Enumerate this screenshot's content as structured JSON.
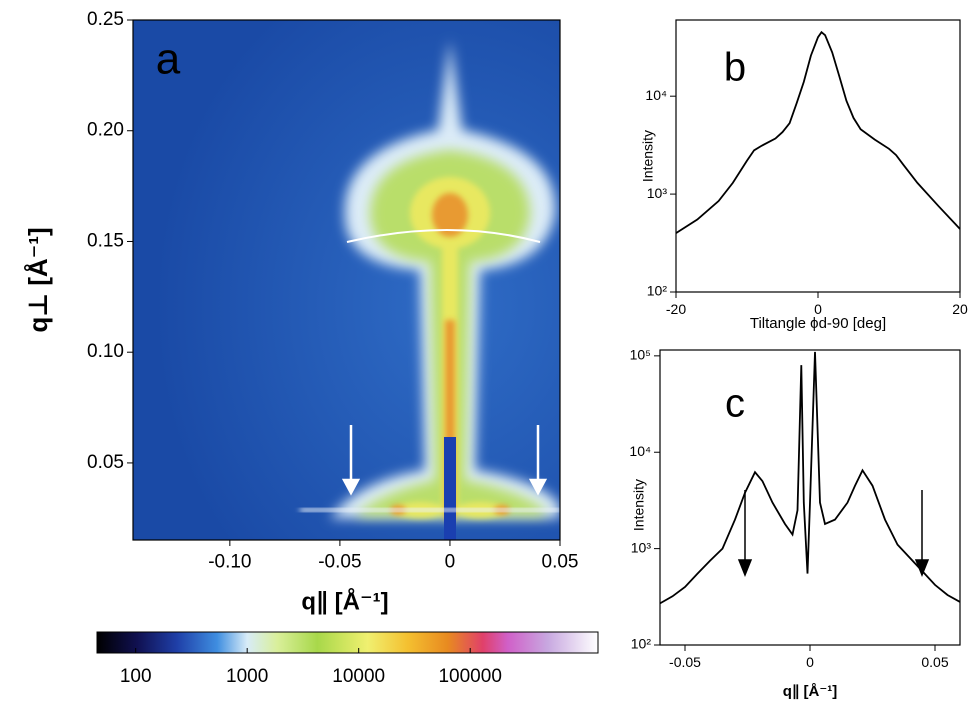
{
  "chart_data": [
    {
      "type": "heatmap",
      "annotation": "a",
      "xlabel": "q∥ [Å⁻¹]",
      "ylabel": "q⊥ [Å⁻¹]",
      "xlim": [
        -0.144,
        0.05
      ],
      "ylim": [
        0.0152,
        0.25
      ],
      "xticks": [
        {
          "value": -0.1,
          "label": "-0.10"
        },
        -0.05,
        0,
        0.05
      ],
      "yticks": [
        0.05,
        {
          "value": 0.1,
          "label": "0.10"
        },
        0.15,
        {
          "value": 0.2,
          "label": "0.20"
        },
        0.25
      ],
      "colorbar": {
        "log": true,
        "lim": [
          45,
          1400000
        ],
        "ticks": [
          100,
          1000,
          10000,
          100000
        ]
      }
    },
    {
      "type": "line",
      "annotation": "b",
      "xlabel": "Tiltangle ϕd-90 [deg]",
      "ylabel": "Intensity",
      "log_y": true,
      "color": "#000000",
      "xlim": [
        -20,
        20
      ],
      "ylim": [
        100,
        60000
      ],
      "xticks": [
        -20,
        0,
        20
      ],
      "yticks": [
        {
          "value": 100,
          "label": "10²"
        },
        {
          "value": 1000,
          "label": "10³"
        },
        {
          "value": 10000,
          "label": "10⁴"
        }
      ],
      "x": [
        -20,
        -17,
        -14,
        -12,
        -10,
        -9,
        -8,
        -6,
        -5,
        -4,
        -3,
        -2,
        -1,
        0,
        0.5,
        1,
        2,
        3,
        4,
        5,
        6,
        8,
        10,
        11,
        12,
        14,
        17,
        20
      ],
      "values": [
        400,
        550,
        850,
        1300,
        2200,
        2800,
        3100,
        3700,
        4300,
        5300,
        8500,
        14000,
        26000,
        40000,
        45000,
        42000,
        28000,
        16000,
        9000,
        6000,
        4600,
        3600,
        2900,
        2500,
        2000,
        1300,
        750,
        440
      ]
    },
    {
      "type": "line",
      "annotation": "c",
      "xlabel": "q∥ [Å⁻¹]",
      "ylabel": "Intensity",
      "log_y": true,
      "color": "#000000",
      "xlim": [
        -0.06,
        0.06
      ],
      "ylim": [
        100,
        115000
      ],
      "xticks": [
        -0.05,
        0,
        0.05
      ],
      "yticks": [
        {
          "value": 100,
          "label": "10²"
        },
        {
          "value": 1000,
          "label": "10³"
        },
        {
          "value": 10000,
          "label": "10⁴"
        },
        {
          "value": 100000,
          "label": "10⁵"
        }
      ],
      "x": [
        -0.06,
        -0.055,
        -0.05,
        -0.045,
        -0.04,
        -0.035,
        -0.03,
        -0.026,
        -0.022,
        -0.019,
        -0.015,
        -0.01,
        -0.007,
        -0.005,
        -0.0035,
        -0.0025,
        -0.001,
        0,
        0.002,
        0.004,
        0.006,
        0.01,
        0.015,
        0.018,
        0.021,
        0.025,
        0.03,
        0.035,
        0.04,
        0.045,
        0.05,
        0.055,
        0.06
      ],
      "values": [
        270,
        320,
        400,
        550,
        750,
        1000,
        2000,
        3800,
        6200,
        5000,
        3000,
        1800,
        1400,
        2500,
        80000,
        3000,
        550,
        3000,
        110000,
        3000,
        1800,
        2000,
        3000,
        4500,
        6500,
        4500,
        2000,
        1100,
        800,
        580,
        420,
        330,
        280
      ]
    }
  ]
}
